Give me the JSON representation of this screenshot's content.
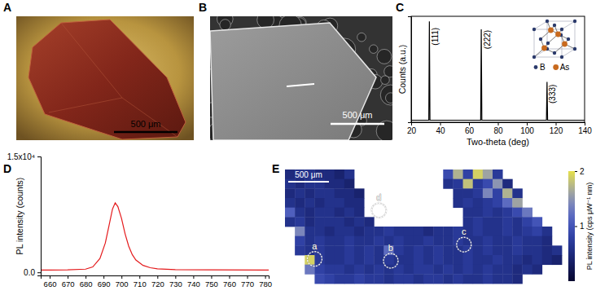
{
  "images": [
    {
      "panel": "A",
      "scale_bar": "500 μm"
    },
    {
      "panel": "B",
      "scale_bar": "500 μm"
    }
  ],
  "chart_data": [
    {
      "panel": "C",
      "type": "line",
      "x_label": "Two-theta (deg)",
      "y_label": "Counts (a.u.)",
      "color": "#000000",
      "x": [
        20,
        32.2,
        32.6,
        33.0,
        68.1,
        68.5,
        68.9,
        113.6,
        114.0,
        114.4,
        140
      ],
      "values": [
        0.02,
        0.02,
        1.0,
        0.02,
        0.02,
        0.92,
        0.02,
        0.02,
        0.4,
        0.02,
        0.02
      ],
      "xlim": [
        20,
        140
      ],
      "xticks": [
        20,
        40,
        60,
        80,
        100,
        120,
        140
      ],
      "ylim": [
        0,
        1.05
      ],
      "tick_labels": "x",
      "annotations": [
        {
          "text": "(111)",
          "x": 37,
          "y": 0.85
        },
        {
          "text": "(222)",
          "x": 73,
          "y": 0.82
        },
        {
          "text": "(333)",
          "x": 118,
          "y": 0.28
        }
      ],
      "inset_legend": [
        {
          "label": "B",
          "color": "#2b3a6b"
        },
        {
          "label": "As",
          "color": "#c86a1e"
        }
      ]
    },
    {
      "panel": "D",
      "type": "line",
      "y_label": "PL intensity (counts)",
      "color": "#e41a1c",
      "x": [
        655,
        660,
        670,
        680,
        684,
        688,
        691,
        693,
        695,
        696.5,
        698,
        700,
        702,
        704,
        706,
        708,
        712,
        716,
        720,
        730,
        750,
        780,
        782
      ],
      "values": [
        300,
        300,
        320,
        420,
        700,
        1800,
        3800,
        6000,
        8200,
        9000,
        8500,
        7000,
        5000,
        3400,
        2300,
        1600,
        900,
        600,
        450,
        350,
        320,
        300,
        300
      ],
      "xlim": [
        655,
        782
      ],
      "xticks": [
        660,
        670,
        680,
        690,
        700,
        710,
        720,
        730,
        740,
        750,
        760,
        770,
        780
      ],
      "ylim": [
        -400,
        15000
      ],
      "yticks": [
        {
          "value": 0,
          "label": "0.0"
        },
        {
          "value": 15000,
          "label": "1.5x10⁴"
        }
      ]
    },
    {
      "panel": "E",
      "type": "heatmap",
      "cells": [
        [
          0.5,
          0.6,
          0.6,
          0.5,
          0.5,
          0.4,
          0.6,
          null,
          null,
          null,
          null,
          null,
          null,
          null,
          null,
          null,
          0.9,
          1.7,
          0.8,
          1.9,
          1.6,
          0.7,
          null,
          null,
          null,
          null,
          null,
          null
        ],
        [
          0.6,
          0.5,
          0.6,
          0.6,
          0.5,
          0.5,
          0.4,
          null,
          null,
          null,
          null,
          null,
          null,
          null,
          null,
          null,
          0.6,
          0.7,
          1.8,
          0.7,
          0.9,
          1.5,
          0.5,
          null,
          null,
          null,
          null,
          null
        ],
        [
          0.5,
          0.6,
          0.5,
          0.6,
          0.6,
          0.5,
          0.5,
          0.4,
          null,
          null,
          null,
          null,
          null,
          null,
          null,
          null,
          null,
          0.6,
          0.6,
          0.7,
          1.4,
          0.8,
          1.7,
          0.6,
          null,
          null,
          null,
          null
        ],
        [
          0.6,
          0.5,
          0.6,
          0.5,
          0.6,
          0.6,
          0.5,
          0.5,
          null,
          null,
          null,
          null,
          null,
          null,
          null,
          null,
          null,
          0.6,
          0.7,
          0.6,
          0.7,
          0.8,
          1.2,
          1.6,
          null,
          null,
          null,
          null
        ],
        [
          1.1,
          0.6,
          0.5,
          0.6,
          0.6,
          0.5,
          0.6,
          0.5,
          null,
          null,
          null,
          null,
          null,
          null,
          null,
          null,
          null,
          null,
          0.6,
          0.6,
          0.7,
          0.6,
          0.7,
          0.9,
          1.3,
          null,
          null,
          null
        ],
        [
          0.6,
          0.7,
          0.5,
          0.6,
          0.6,
          0.6,
          0.5,
          0.6,
          0.5,
          null,
          null,
          null,
          null,
          null,
          null,
          null,
          null,
          null,
          0.6,
          0.7,
          0.6,
          0.6,
          0.7,
          0.6,
          0.8,
          1.0,
          null,
          null
        ],
        [
          null,
          1.4,
          0.6,
          0.6,
          0.5,
          0.6,
          0.6,
          0.5,
          0.6,
          0.6,
          0.7,
          0.6,
          0.6,
          0.6,
          0.5,
          0.6,
          0.6,
          0.7,
          0.6,
          0.7,
          0.6,
          0.6,
          0.7,
          0.6,
          0.7,
          0.8,
          0.6,
          null
        ],
        [
          null,
          0.8,
          0.6,
          0.7,
          0.6,
          0.6,
          0.7,
          0.6,
          0.6,
          0.7,
          0.6,
          0.7,
          0.6,
          0.6,
          0.7,
          0.6,
          0.6,
          0.7,
          0.6,
          0.6,
          0.7,
          0.6,
          0.6,
          0.7,
          0.6,
          0.6,
          0.5,
          null
        ],
        [
          null,
          0.7,
          0.6,
          0.7,
          0.6,
          0.6,
          0.7,
          0.6,
          0.7,
          0.6,
          1.2,
          0.7,
          0.6,
          0.7,
          0.6,
          0.7,
          0.6,
          0.6,
          0.7,
          0.6,
          0.7,
          0.6,
          0.6,
          0.7,
          0.6,
          0.6,
          0.5,
          0.6
        ],
        [
          null,
          null,
          1.9,
          0.7,
          0.6,
          0.6,
          0.7,
          0.6,
          0.7,
          0.6,
          0.7,
          0.6,
          0.6,
          0.7,
          0.6,
          0.7,
          0.6,
          0.6,
          0.7,
          0.6,
          0.6,
          0.7,
          0.6,
          0.6,
          0.5,
          0.6,
          0.5,
          0.4
        ],
        [
          null,
          null,
          1.3,
          0.8,
          0.7,
          0.7,
          0.6,
          0.7,
          0.6,
          0.7,
          0.6,
          0.7,
          0.6,
          0.7,
          0.7,
          0.6,
          0.7,
          0.6,
          0.7,
          0.6,
          0.7,
          0.6,
          0.6,
          0.5,
          0.6,
          0.5,
          null,
          null
        ],
        [
          null,
          null,
          null,
          0.9,
          0.8,
          0.7,
          0.7,
          0.8,
          0.7,
          0.7,
          0.6,
          0.7,
          0.7,
          0.6,
          0.7,
          0.7,
          0.6,
          0.7,
          0.6,
          0.6,
          0.7,
          0.6,
          0.6,
          0.5,
          null,
          null,
          null,
          null
        ]
      ],
      "colorbar": {
        "range": [
          0,
          2
        ],
        "ticks": [
          1,
          2
        ],
        "label": "PL intensity (cps μW⁻¹ nm)"
      },
      "scale_bar": "500 μm",
      "annotations": [
        {
          "text": "a",
          "x": 3.0,
          "y": 9.4
        },
        {
          "text": "b",
          "x": 10.7,
          "y": 9.6
        },
        {
          "text": "c",
          "x": 18.1,
          "y": 7.9
        },
        {
          "text": "d",
          "x": 9.5,
          "y": 4.3
        }
      ]
    }
  ]
}
